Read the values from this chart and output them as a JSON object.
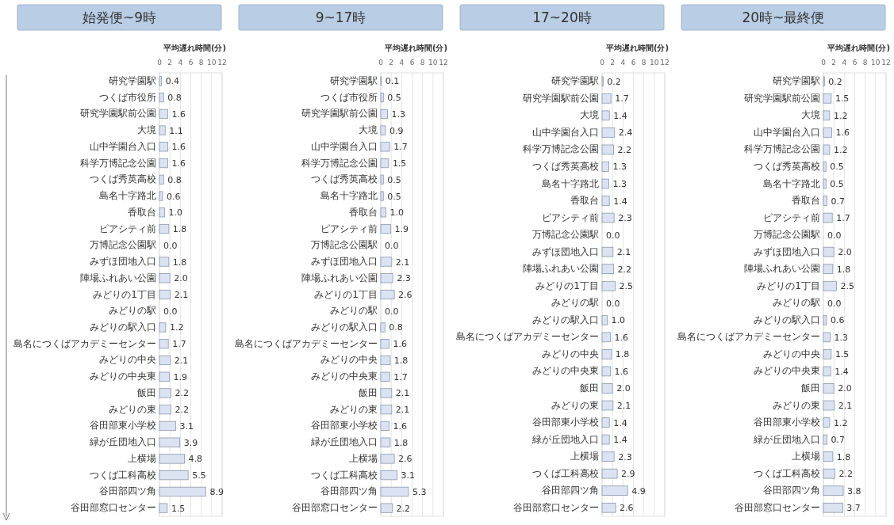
{
  "chart_data": [
    {
      "type": "bar",
      "orientation": "horizontal",
      "title": "始発便~9時",
      "xlabel": "平均遅れ時間(分)",
      "xlim": [
        0,
        12
      ],
      "xticks": [
        0,
        2,
        4,
        6,
        8,
        10,
        12
      ],
      "grid": "x",
      "color": "#dbe3f3",
      "categories": [
        "研究学園駅",
        "つくば市役所",
        "研究学園駅前公園",
        "大境",
        "山中学園台入口",
        "科学万博記念公園",
        "つくば秀英高校",
        "島名十字路北",
        "香取台",
        "ピアシティ前",
        "万博記念公園駅",
        "みずほ団地入口",
        "陣場ふれあい公園",
        "みどりの1丁目",
        "みどりの駅",
        "みどりの駅入口",
        "島名につくばアカデミーセンター",
        "みどりの中央",
        "みどりの中央東",
        "飯田",
        "みどりの東",
        "谷田部東小学校",
        "緑が丘団地入口",
        "上横場",
        "つくば工科高校",
        "谷田部四ツ角",
        "谷田部窓口センター"
      ],
      "values": [
        0.4,
        0.8,
        1.6,
        1.1,
        1.6,
        1.6,
        0.8,
        0.6,
        1.0,
        1.8,
        0.0,
        1.8,
        2.0,
        2.1,
        0.0,
        1.2,
        1.7,
        2.1,
        1.9,
        2.2,
        2.2,
        3.1,
        3.9,
        4.8,
        5.5,
        8.9,
        1.5
      ],
      "value_labels": [
        "0.4",
        "0.8",
        "1.6",
        "1.1",
        "1.6",
        "1.6",
        "0.8",
        "0.6",
        "1.0",
        "1.8",
        "0.0",
        "1.8",
        "2.0",
        "2.1",
        "0.0",
        "1.2",
        "1.7",
        "2.1",
        "1.9",
        "2.2",
        "2.2",
        "3.1",
        "3.9",
        "4.8",
        "5.5",
        "8.9",
        "1.5"
      ]
    },
    {
      "type": "bar",
      "orientation": "horizontal",
      "title": "9~17時",
      "xlabel": "平均遅れ時間(分)",
      "xlim": [
        0,
        12
      ],
      "xticks": [
        0,
        2,
        4,
        6,
        8,
        10,
        12
      ],
      "grid": "x",
      "color": "#dbe3f3",
      "categories": [
        "研究学園駅",
        "つくば市役所",
        "研究学園駅前公園",
        "大境",
        "山中学園台入口",
        "科学万博記念公園",
        "つくば秀英高校",
        "島名十字路北",
        "香取台",
        "ピアシティ前",
        "万博記念公園駅",
        "みずほ団地入口",
        "陣場ふれあい公園",
        "みどりの1丁目",
        "みどりの駅",
        "みどりの駅入口",
        "島名につくばアカデミーセンター",
        "みどりの中央",
        "みどりの中央東",
        "飯田",
        "みどりの東",
        "谷田部東小学校",
        "緑が丘団地入口",
        "上横場",
        "つくば工科高校",
        "谷田部四ツ角",
        "谷田部窓口センター"
      ],
      "values": [
        0.1,
        0.5,
        1.3,
        0.9,
        1.7,
        1.5,
        0.5,
        0.5,
        1.0,
        1.9,
        0.0,
        2.1,
        2.3,
        2.6,
        0.0,
        0.8,
        1.6,
        1.8,
        1.7,
        2.1,
        2.1,
        1.6,
        1.8,
        2.6,
        3.1,
        5.3,
        2.2
      ],
      "value_labels": [
        "0.1",
        "0.5",
        "1.3",
        "0.9",
        "1.7",
        "1.5",
        "0.5",
        "0.5",
        "1.0",
        "1.9",
        "0.0",
        "2.1",
        "2.3",
        "2.6",
        "0.0",
        "0.8",
        "1.6",
        "1.8",
        "1.7",
        "2.1",
        "2.1",
        "1.6",
        "1.8",
        "2.6",
        "3.1",
        "5.3",
        "2.2"
      ]
    },
    {
      "type": "bar",
      "orientation": "horizontal",
      "title": "17~20時",
      "xlabel": "平均遅れ時間(分)",
      "xlim": [
        0,
        12
      ],
      "xticks": [
        0,
        2,
        4,
        6,
        8,
        10,
        12
      ],
      "grid": "x",
      "color": "#dbe3f3",
      "categories": [
        "研究学園駅",
        "研究学園駅前公園",
        "大境",
        "山中学園台入口",
        "科学万博記念公園",
        "つくば秀英高校",
        "島名十字路北",
        "香取台",
        "ピアシティ前",
        "万博記念公園駅",
        "みずほ団地入口",
        "陣場ふれあい公園",
        "みどりの1丁目",
        "みどりの駅",
        "みどりの駅入口",
        "島名につくばアカデミーセンター",
        "みどりの中央",
        "みどりの中央東",
        "飯田",
        "みどりの東",
        "谷田部東小学校",
        "緑が丘団地入口",
        "上横場",
        "つくば工科高校",
        "谷田部四ツ角",
        "谷田部窓口センター"
      ],
      "values": [
        0.2,
        1.7,
        1.4,
        2.4,
        2.2,
        1.3,
        1.3,
        1.4,
        2.3,
        0.0,
        2.1,
        2.2,
        2.5,
        0.0,
        1.0,
        1.6,
        1.8,
        1.6,
        2.0,
        2.1,
        1.4,
        1.4,
        2.3,
        2.9,
        4.9,
        2.6
      ],
      "value_labels": [
        "0.2",
        "1.7",
        "1.4",
        "2.4",
        "2.2",
        "1.3",
        "1.3",
        "1.4",
        "2.3",
        "0.0",
        "2.1",
        "2.2",
        "2.5",
        "0.0",
        "1.0",
        "1.6",
        "1.8",
        "1.6",
        "2.0",
        "2.1",
        "1.4",
        "1.4",
        "2.3",
        "2.9",
        "4.9",
        "2.6"
      ]
    },
    {
      "type": "bar",
      "orientation": "horizontal",
      "title": "20時~最終便",
      "xlabel": "平均遅れ時間(分)",
      "xlim": [
        0,
        12
      ],
      "xticks": [
        0,
        2,
        4,
        6,
        8,
        10,
        12
      ],
      "grid": "x",
      "color": "#dbe3f3",
      "categories": [
        "研究学園駅",
        "研究学園駅前公園",
        "大境",
        "山中学園台入口",
        "科学万博記念公園",
        "つくば秀英高校",
        "島名十字路北",
        "香取台",
        "ピアシティ前",
        "万博記念公園駅",
        "みずほ団地入口",
        "陣場ふれあい公園",
        "みどりの1丁目",
        "みどりの駅",
        "みどりの駅入口",
        "島名につくばアカデミーセンター",
        "みどりの中央",
        "みどりの中央東",
        "飯田",
        "みどりの東",
        "谷田部東小学校",
        "緑が丘団地入口",
        "上横場",
        "つくば工科高校",
        "谷田部四ツ角",
        "谷田部窓口センター"
      ],
      "values": [
        0.2,
        1.5,
        1.2,
        1.6,
        1.2,
        0.5,
        0.5,
        0.7,
        1.7,
        0.0,
        2.0,
        1.8,
        2.5,
        0.0,
        0.6,
        1.3,
        1.5,
        1.4,
        2.0,
        2.1,
        1.2,
        0.7,
        1.8,
        2.2,
        3.8,
        3.7
      ],
      "value_labels": [
        "0.2",
        "1.5",
        "1.2",
        "1.6",
        "1.2",
        "0.5",
        "0.5",
        "0.7",
        "1.7",
        "0.0",
        "2.0",
        "1.8",
        "2.5",
        "0.0",
        "0.6",
        "1.3",
        "1.5",
        "1.4",
        "2.0",
        "2.1",
        "1.2",
        "0.7",
        "1.8",
        "2.2",
        "3.8",
        "3.7"
      ]
    }
  ]
}
